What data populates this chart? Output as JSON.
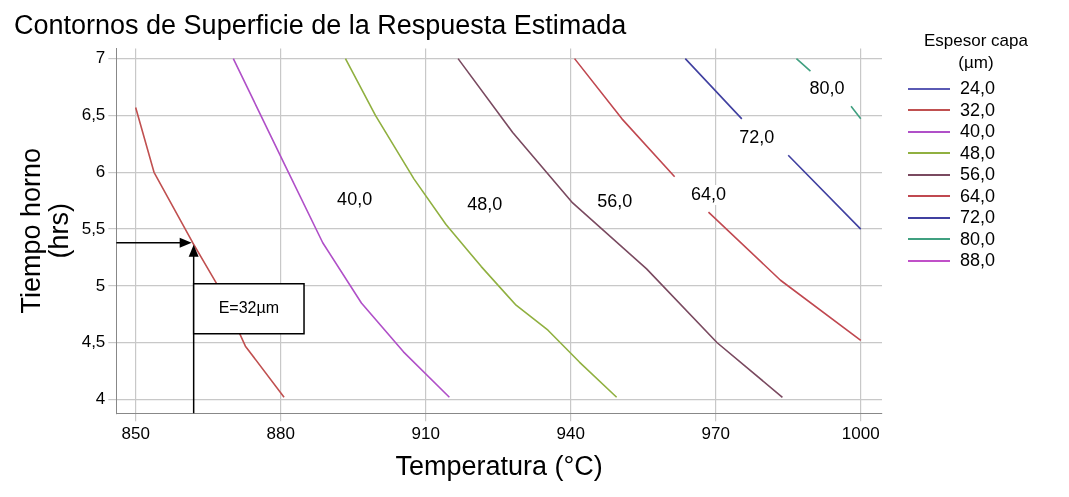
{
  "chart_data": {
    "type": "line",
    "title": "Contornos de Superficie de la Respuesta Estimada",
    "xlabel": "Temperatura (°C)",
    "ylabel": "Tiempo horno\n(hrs)",
    "legend_title": "Espesor capa\n(µm)",
    "legend": "right",
    "grid": true,
    "marker": "none",
    "line_style": "solid",
    "xlim": [
      846,
      1004.4
    ],
    "ylim": [
      3.88,
      7.09
    ],
    "xticks": [
      850,
      880,
      910,
      940,
      970,
      1000
    ],
    "yticks": [
      4,
      {
        "value": 4.5,
        "label": "4,5"
      },
      5,
      {
        "value": 5.5,
        "label": "5,5"
      },
      6,
      {
        "value": 6.5,
        "label": "6,5"
      },
      7
    ],
    "series": [
      {
        "name": "24,0",
        "color": "#5a5ab4"
      },
      {
        "name": "32,0",
        "color": "#c05050",
        "x": [
          850,
          853.8,
          861.8,
          866.9,
          872.7,
          880.7
        ],
        "values": [
          6.57,
          6.0,
          5.38,
          5.01,
          4.47,
          4.02
        ]
      },
      {
        "name": "40,0",
        "color": "#b050c8",
        "x": [
          870.2,
          880.8,
          888.7,
          896.7,
          905.4,
          914.9
        ],
        "values": [
          7.0,
          6.07,
          5.38,
          4.85,
          4.42,
          4.02
        ]
      },
      {
        "name": "48,0",
        "color": "#90b040",
        "x": [
          893.4,
          899.6,
          907.6,
          914.2,
          921.5,
          928.7,
          935.3,
          941.8,
          949.5
        ],
        "values": [
          7.0,
          6.5,
          5.94,
          5.54,
          5.17,
          4.83,
          4.61,
          4.33,
          4.02
        ]
      },
      {
        "name": "56,0",
        "color": "#7a4a60",
        "x": [
          916.7,
          928,
          940.4,
          955.7,
          970.3,
          983.8
        ],
        "values": [
          7.0,
          6.35,
          5.73,
          5.15,
          4.5,
          4.02
        ]
      },
      {
        "name": "64,0",
        "color": "#c04850",
        "x": [
          940.8,
          950.6,
          961.5,
          965,
          968.5,
          983.4,
          1000
        ],
        "values": [
          7.0,
          6.47,
          5.96,
          null,
          5.65,
          5.05,
          4.52
        ]
      },
      {
        "name": "72,0",
        "color": "#4040a0",
        "x": [
          963.7,
          975.4,
          980,
          985,
          1000
        ],
        "values": [
          7.0,
          6.47,
          null,
          6.15,
          5.5
        ]
      },
      {
        "name": "80,0",
        "color": "#40a080",
        "x": [
          986.7,
          989.6,
          993,
          998,
          1000
        ],
        "values": [
          7.0,
          6.89,
          null,
          6.58,
          6.47
        ]
      },
      {
        "name": "88,0",
        "color": "#c050c8"
      }
    ],
    "annotations": [
      {
        "text": "40,0",
        "x": 895.3,
        "y": 5.76
      },
      {
        "text": "48,0",
        "x": 922.2,
        "y": 5.71
      },
      {
        "text": "56,0",
        "x": 949.1,
        "y": 5.74
      },
      {
        "text": "64,0",
        "x": 968.5,
        "y": 5.8
      },
      {
        "text": "72,0",
        "x": 978.5,
        "y": 6.3
      },
      {
        "text": "80,0",
        "x": 993,
        "y": 6.73
      },
      "E=32µm"
    ]
  }
}
